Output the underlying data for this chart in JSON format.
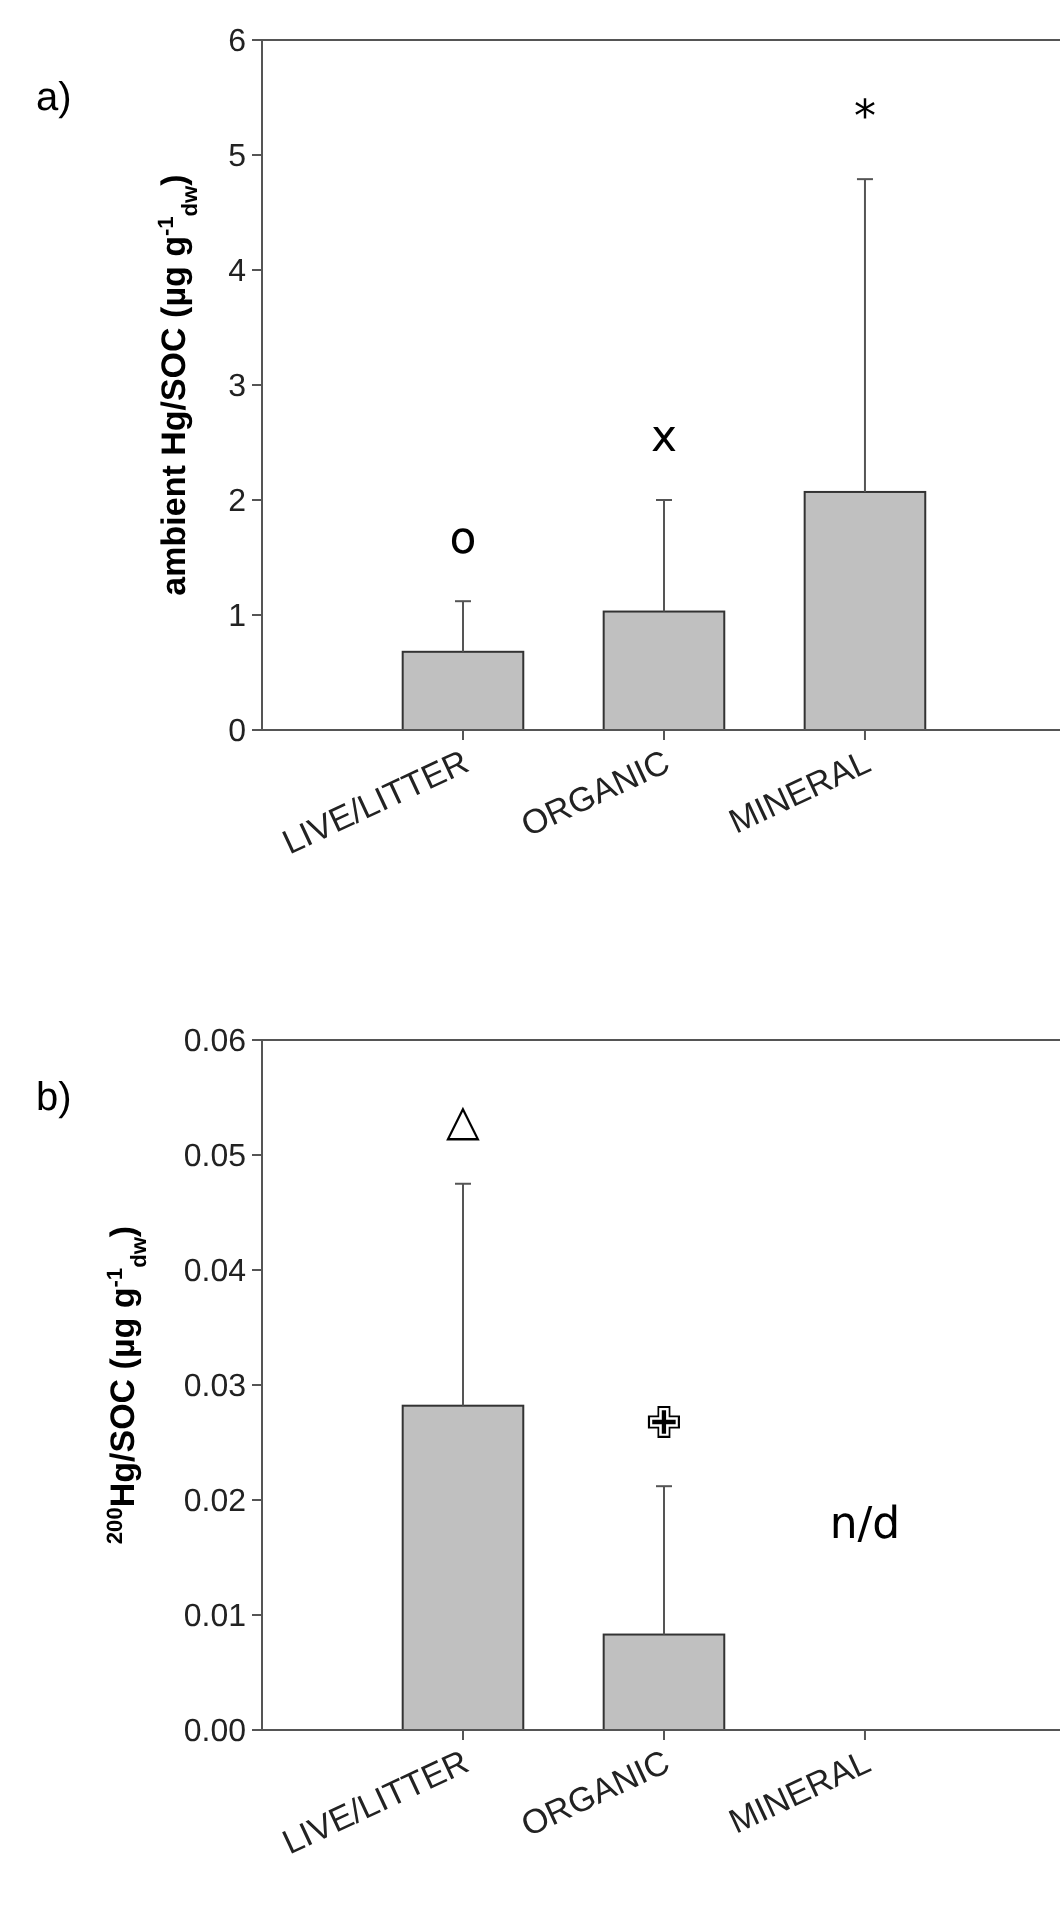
{
  "chart_data": [
    {
      "type": "bar",
      "title": "a)",
      "ylabel": "ambient Hg/SOC (µg g$^{-1}$$_{dw}$)",
      "categories": [
        "LIVE/LITTER",
        "ORGANIC",
        "MINERAL"
      ],
      "values": [
        0.68,
        1.03,
        2.07
      ],
      "color": "#c0c0c0",
      "errors": [
        [
          0.68,
          1.12
        ],
        [
          1.03,
          2.0
        ],
        [
          2.07,
          4.79
        ]
      ],
      "ylim": [
        0,
        6
      ],
      "yticks": [
        0,
        1,
        2,
        3,
        4,
        5,
        6
      ],
      "grid": false,
      "annotations": [
        "o",
        "x",
        "*"
      ]
    },
    {
      "type": "bar",
      "title": "b)",
      "ylabel": "$^{200}$Hg/SOC (µg g$^{-1}$$_{dw}$)",
      "categories": [
        "LIVE/LITTER",
        "ORGANIC",
        "MINERAL"
      ],
      "values": [
        0.0282,
        0.0083,
        null
      ],
      "color": "#c0c0c0",
      "errors": [
        [
          0.0282,
          0.0475
        ],
        [
          0.0083,
          0.0212
        ],
        null
      ],
      "ylim": [
        0,
        0.06
      ],
      "yticks": [
        {
          "value": 0,
          "label": "0.00"
        },
        {
          "value": 0.01,
          "label": "0.01"
        },
        {
          "value": 0.02,
          "label": "0.02"
        },
        {
          "value": 0.03,
          "label": "0.03"
        },
        {
          "value": 0.04,
          "label": "0.04"
        },
        {
          "value": 0.05,
          "label": "0.05"
        },
        {
          "value": 0.06,
          "label": "0.06"
        }
      ],
      "grid": false,
      "annotations": [
        "△",
        "✙",
        "n/d"
      ]
    }
  ]
}
